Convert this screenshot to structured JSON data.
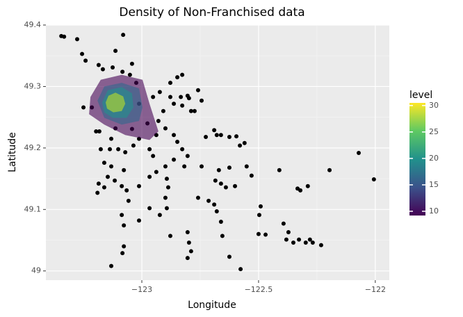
{
  "chart_data": {
    "type": "scatter",
    "title": "Density of Non-Franchised data",
    "x_label": "Longitude",
    "y_label": "Latitude",
    "xlim": [
      -123.411,
      -121.94
    ],
    "ylim": [
      48.985,
      49.4
    ],
    "xticks": [
      {
        "value": -123,
        "label": "−123"
      },
      {
        "value": -122.5,
        "label": "−122.5"
      },
      {
        "value": -122,
        "label": "−122"
      }
    ],
    "yticks": [
      49,
      49.1,
      49.2,
      49.3,
      49.4
    ],
    "grid": true,
    "point_color": "#000000",
    "x": [
      -123.345,
      -123.333,
      -123.277,
      -123.08,
      -123.256,
      -123.241,
      -123.113,
      -123.042,
      -123.185,
      -123.167,
      -123.125,
      -123.083,
      -123.051,
      -123.024,
      -122.923,
      -122.878,
      -122.833,
      -122.804,
      -122.759,
      -122.744,
      -122.789,
      -122.827,
      -122.863,
      -122.908,
      -122.929,
      -122.899,
      -122.863,
      -122.848,
      -122.827,
      -122.804,
      -122.818,
      -122.863,
      -122.899,
      -122.952,
      -122.967,
      -123.012,
      -123.036,
      -123.071,
      -123.101,
      -123.137,
      -123.176,
      -123.161,
      -123.131,
      -123.146,
      -123.185,
      -123.19,
      -123.161,
      -123.116,
      -123.086,
      -123.065,
      -123.057,
      -123.077,
      -123.012,
      -122.967,
      -122.938,
      -122.893,
      -122.887,
      -122.899,
      -122.893,
      -122.923,
      -122.967,
      -123.012,
      -123.086,
      -123.077,
      -123.077,
      -123.083,
      -123.131,
      -122.878,
      -122.804,
      -122.798,
      -122.789,
      -122.804,
      -122.759,
      -122.714,
      -122.69,
      -122.679,
      -122.661,
      -122.655,
      -122.625,
      -122.577,
      -122.685,
      -122.67,
      -122.661,
      -122.64,
      -122.601,
      -122.53,
      -122.551,
      -122.625,
      -122.744,
      -122.69,
      -122.661,
      -122.625,
      -122.595,
      -122.56,
      -122.58,
      -122.491,
      -122.497,
      -122.5,
      -122.47,
      -122.411,
      -122.333,
      -122.321,
      -122.289,
      -122.393,
      -122.381,
      -122.372,
      -122.351,
      -122.327,
      -122.298,
      -122.28,
      -122.268,
      -122.232,
      -122.196,
      -122.071,
      -122.006,
      -122.726,
      -122.679,
      -122.878,
      -122.848,
      -122.827,
      -122.798,
      -122.774,
      -122.938,
      -122.976,
      -123.042,
      -122.952,
      -123.214,
      -123.25,
      -123.196,
      -123.182,
      -123.113,
      -123.131,
      -123.012
    ],
    "y": [
      49.382,
      49.381,
      49.377,
      49.384,
      49.353,
      49.342,
      49.358,
      49.337,
      49.335,
      49.328,
      49.331,
      49.324,
      49.319,
      49.306,
      49.291,
      49.283,
      49.283,
      49.285,
      49.294,
      49.277,
      49.26,
      49.269,
      49.272,
      49.26,
      49.244,
      49.232,
      49.221,
      49.21,
      49.198,
      49.187,
      49.17,
      49.181,
      49.17,
      49.187,
      49.198,
      49.215,
      49.204,
      49.193,
      49.198,
      49.198,
      49.198,
      49.176,
      49.17,
      49.153,
      49.142,
      49.127,
      49.136,
      49.147,
      49.138,
      49.131,
      49.114,
      49.164,
      49.138,
      49.153,
      49.161,
      49.15,
      49.136,
      49.119,
      49.102,
      49.091,
      49.102,
      49.082,
      49.091,
      49.074,
      49.04,
      49.029,
      49.008,
      49.057,
      49.063,
      49.046,
      49.032,
      49.021,
      49.119,
      49.114,
      49.108,
      49.097,
      49.08,
      49.057,
      49.023,
      49.003,
      49.147,
      49.164,
      49.142,
      49.136,
      49.138,
      49.155,
      49.17,
      49.168,
      49.17,
      49.229,
      49.221,
      49.218,
      49.219,
      49.208,
      49.204,
      49.105,
      49.091,
      49.06,
      49.059,
      49.164,
      49.134,
      49.131,
      49.138,
      49.077,
      49.051,
      49.063,
      49.046,
      49.051,
      49.046,
      49.051,
      49.046,
      49.042,
      49.164,
      49.192,
      49.149,
      49.218,
      49.221,
      49.306,
      49.315,
      49.319,
      49.281,
      49.26,
      49.221,
      49.24,
      49.231,
      49.283,
      49.266,
      49.266,
      49.227,
      49.227,
      49.232,
      49.215,
      49.272
    ],
    "contours": [
      {
        "color": "#440154",
        "x": [
          -123.22,
          -123.176,
          -123.086,
          -122.997,
          -122.967,
          -122.929,
          -122.967,
          -123.071,
          -123.161,
          -123.226
        ],
        "y": [
          49.283,
          49.311,
          49.319,
          49.311,
          49.272,
          49.227,
          49.213,
          49.221,
          49.238,
          49.255
        ]
      },
      {
        "color": "#31688e",
        "x": [
          -123.19,
          -123.161,
          -123.086,
          -123.012,
          -122.997,
          -123.012,
          -123.086,
          -123.161
        ],
        "y": [
          49.277,
          49.3,
          49.306,
          49.297,
          49.266,
          49.244,
          49.238,
          49.249
        ]
      },
      {
        "color": "#21918c",
        "x": [
          -123.17,
          -123.146,
          -123.086,
          -123.042,
          -123.036,
          -123.065,
          -123.125,
          -123.161
        ],
        "y": [
          49.274,
          49.294,
          49.299,
          49.289,
          49.266,
          49.249,
          49.249,
          49.258
        ]
      },
      {
        "color": "#bddf26",
        "x": [
          -123.155,
          -123.143,
          -123.113,
          -123.08,
          -123.071,
          -123.086,
          -123.122,
          -123.149
        ],
        "y": [
          49.274,
          49.285,
          49.29,
          49.284,
          49.272,
          49.26,
          49.258,
          49.264
        ]
      }
    ],
    "legend_title": "level",
    "colorbar_lim": [
      9.2,
      30.5
    ],
    "colorbar_ticks": [
      10,
      15,
      20,
      25,
      30
    ],
    "colorscale": [
      "#440154",
      "#3b528b",
      "#21918c",
      "#5ec962",
      "#fde725"
    ]
  }
}
